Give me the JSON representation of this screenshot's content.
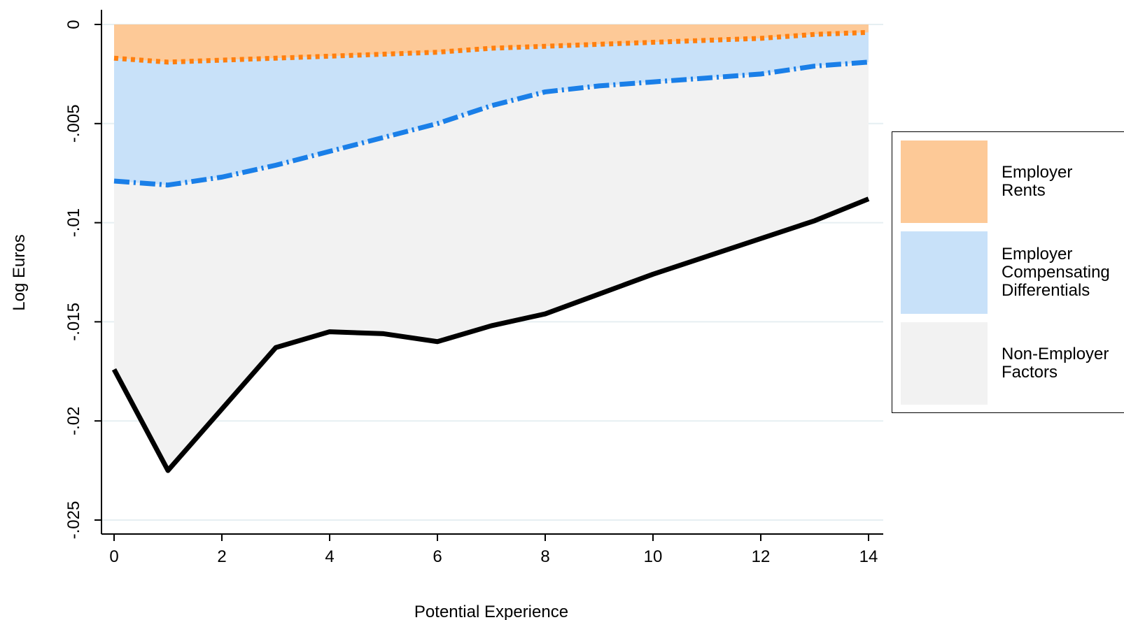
{
  "chart_data": {
    "type": "area",
    "xlabel": "Potential Experience",
    "ylabel": "Log Euros",
    "xlim": [
      0,
      14
    ],
    "ylim": [
      -0.0255,
      0.0007
    ],
    "x_ticks": [
      0,
      2,
      4,
      6,
      8,
      10,
      12,
      14
    ],
    "x_tick_labels": [
      "0",
      "2",
      "4",
      "6",
      "8",
      "10",
      "12",
      "14"
    ],
    "y_ticks": [
      0,
      -0.005,
      -0.01,
      -0.015,
      -0.02,
      -0.025
    ],
    "y_tick_labels": [
      "0",
      "-.005",
      "-.01",
      "-.015",
      "-.02",
      "-.025"
    ],
    "grid": true,
    "legend_position": "right",
    "x": [
      0,
      1,
      2,
      3,
      4,
      5,
      6,
      7,
      8,
      9,
      10,
      11,
      12,
      13,
      14
    ],
    "series": [
      {
        "name": "Employer Rents",
        "legend_label": "Employer\nRents",
        "fill_color": "#fdc997",
        "line_color": "#ff7f0e",
        "line_style": "dotted",
        "values": [
          -0.0017,
          -0.0019,
          -0.0018,
          -0.0017,
          -0.0016,
          -0.0015,
          -0.0014,
          -0.0012,
          -0.0011,
          -0.001,
          -0.0009,
          -0.0008,
          -0.0007,
          -0.0005,
          -0.0004
        ]
      },
      {
        "name": "Employer Compensating Differentials",
        "legend_label": "Employer\nCompensating\nDifferentials",
        "fill_color": "#c8e1f9",
        "line_color": "#1a7fe8",
        "line_style": "dash-dot",
        "values": [
          -0.0079,
          -0.0081,
          -0.0077,
          -0.0071,
          -0.0064,
          -0.0057,
          -0.005,
          -0.0041,
          -0.0034,
          -0.0031,
          -0.0029,
          -0.0027,
          -0.0025,
          -0.0021,
          -0.0019
        ]
      },
      {
        "name": "Non-Employer Factors",
        "legend_label": "Non-Employer\nFactors",
        "fill_color": "#f2f2f2",
        "line_color": "#000000",
        "line_style": "solid",
        "values": [
          -0.0174,
          -0.0225,
          -0.0194,
          -0.0163,
          -0.0155,
          -0.0156,
          -0.016,
          -0.0152,
          -0.0146,
          -0.0136,
          -0.0126,
          -0.0117,
          -0.0108,
          -0.0099,
          -0.0088
        ]
      }
    ]
  }
}
